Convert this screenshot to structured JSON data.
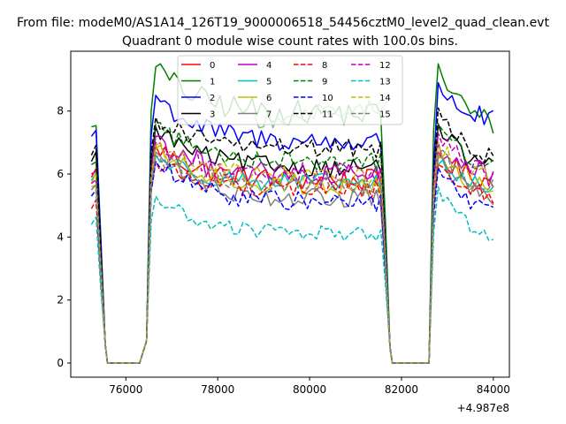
{
  "chart_data": {
    "type": "line",
    "suptitle": "From file: modeM0/AS1A14_126T19_9000006518_54456cztM0_level2_quad_clean.evt",
    "title": "Quadrant 0 module wise count rates with 100.0s bins.",
    "xlabel": "",
    "ylabel": "",
    "x_offset_label": "+4.987e8",
    "x_offset": 498700000,
    "xlim": [
      74800,
      84350
    ],
    "ylim": [
      -0.45,
      9.9
    ],
    "x_ticks": [
      76000,
      78000,
      80000,
      82000,
      84000
    ],
    "x_tick_labels": [
      "76000",
      "78000",
      "80000",
      "82000",
      "84000"
    ],
    "y_ticks": [
      0,
      2,
      4,
      6,
      8
    ],
    "y_tick_labels": [
      "0",
      "2",
      "4",
      "6",
      "8"
    ],
    "grid": false,
    "legend_location": "upper center",
    "legend_columns": 4,
    "bin_size_s": 100.0,
    "orbit_segments": [
      {
        "x_start": 75250,
        "x_end": 76650,
        "ramp_bins": [
          75250,
          75350,
          75450,
          75550,
          76350,
          76450,
          76550
        ]
      },
      {
        "x_start": 81550,
        "x_end": 84000,
        "ramp_bins": [
          81550,
          81650,
          81750,
          82650,
          82750,
          82850
        ]
      }
    ],
    "series": [
      {
        "name": "0",
        "color": "#ff0000",
        "style": "solid",
        "level": 5.8,
        "seg1_start": 5.9,
        "seg1_peak": 6.9,
        "seg2_start": 6.2,
        "seg2_peak": 6.7,
        "end": 5.6,
        "noise": 0.35
      },
      {
        "name": "1",
        "color": "#008000",
        "style": "solid",
        "level": 7.9,
        "seg1_start": 7.5,
        "seg1_peak": 9.4,
        "seg2_start": 8.2,
        "seg2_peak": 9.5,
        "end": 7.3,
        "noise": 0.4
      },
      {
        "name": "2",
        "color": "#0000ff",
        "style": "solid",
        "level": 7.0,
        "seg1_start": 7.2,
        "seg1_peak": 8.5,
        "seg2_start": 6.9,
        "seg2_peak": 8.9,
        "end": 7.5,
        "noise": 0.35
      },
      {
        "name": "3",
        "color": "#000000",
        "style": "solid",
        "level": 6.2,
        "seg1_start": 6.4,
        "seg1_peak": 7.5,
        "seg2_start": 5.8,
        "seg2_peak": 7.6,
        "end": 6.0,
        "noise": 0.3
      },
      {
        "name": "4",
        "color": "#bf00bf",
        "style": "solid",
        "level": 5.9,
        "seg1_start": 6.0,
        "seg1_peak": 7.2,
        "seg2_start": 6.1,
        "seg2_peak": 7.0,
        "end": 5.8,
        "noise": 0.4
      },
      {
        "name": "5",
        "color": "#00bfbf",
        "style": "solid",
        "level": 5.7,
        "seg1_start": 5.8,
        "seg1_peak": 6.6,
        "seg2_start": 5.9,
        "seg2_peak": 6.3,
        "end": 5.5,
        "noise": 0.3
      },
      {
        "name": "6",
        "color": "#bfbf00",
        "style": "solid",
        "level": 5.6,
        "seg1_start": 5.7,
        "seg1_peak": 6.8,
        "seg2_start": 5.8,
        "seg2_peak": 6.5,
        "end": 5.4,
        "noise": 0.3
      },
      {
        "name": "7",
        "color": "#808080",
        "style": "solid",
        "level": 5.2,
        "seg1_start": 5.5,
        "seg1_peak": 6.7,
        "seg2_start": 5.3,
        "seg2_peak": 6.6,
        "end": 5.0,
        "noise": 0.3
      },
      {
        "name": "8",
        "color": "#ff0000",
        "style": "dashed",
        "level": 5.5,
        "seg1_start": 4.9,
        "seg1_peak": 6.4,
        "seg2_start": 5.7,
        "seg2_peak": 6.3,
        "end": 5.2,
        "noise": 0.3
      },
      {
        "name": "9",
        "color": "#008000",
        "style": "dashed",
        "level": 6.4,
        "seg1_start": 6.3,
        "seg1_peak": 7.6,
        "seg2_start": 6.6,
        "seg2_peak": 7.6,
        "end": 6.0,
        "noise": 0.3
      },
      {
        "name": "10",
        "color": "#0000ff",
        "style": "dashed",
        "level": 5.1,
        "seg1_start": 5.3,
        "seg1_peak": 6.4,
        "seg2_start": 5.2,
        "seg2_peak": 6.2,
        "end": 4.6,
        "noise": 0.3
      },
      {
        "name": "11",
        "color": "#000000",
        "style": "dashed",
        "level": 6.8,
        "seg1_start": 6.6,
        "seg1_peak": 7.8,
        "seg2_start": 6.5,
        "seg2_peak": 8.1,
        "end": 6.3,
        "noise": 0.3
      },
      {
        "name": "12",
        "color": "#bf00bf",
        "style": "dashed",
        "level": 6.0,
        "seg1_start": 5.7,
        "seg1_peak": 7.0,
        "seg2_start": 6.3,
        "seg2_peak": 7.3,
        "end": 5.9,
        "noise": 0.35
      },
      {
        "name": "13",
        "color": "#00bfbf",
        "style": "dashed",
        "level": 4.1,
        "seg1_start": 4.4,
        "seg1_peak": 5.3,
        "seg2_start": 4.6,
        "seg2_peak": 5.6,
        "end": 3.8,
        "noise": 0.25
      },
      {
        "name": "14",
        "color": "#bfbf00",
        "style": "dashed",
        "level": 5.9,
        "seg1_start": 5.6,
        "seg1_peak": 6.9,
        "seg2_start": 6.0,
        "seg2_peak": 7.0,
        "end": 5.7,
        "noise": 0.3
      },
      {
        "name": "15",
        "color": "#808080",
        "style": "dashed",
        "level": 5.6,
        "seg1_start": 5.5,
        "seg1_peak": 6.6,
        "seg2_start": 5.8,
        "seg2_peak": 6.7,
        "end": 5.4,
        "noise": 0.3
      },
      {
        "name": "",
        "color": "#7fbf7f",
        "style": "solid",
        "level": 7.7,
        "seg1_start": 8.0,
        "seg1_peak": 8.2,
        "seg2_start": 8.2,
        "seg2_peak": 8.2,
        "end": 8.2,
        "noise": 0.3,
        "x_range": [
          78800,
          81700
        ]
      }
    ]
  }
}
